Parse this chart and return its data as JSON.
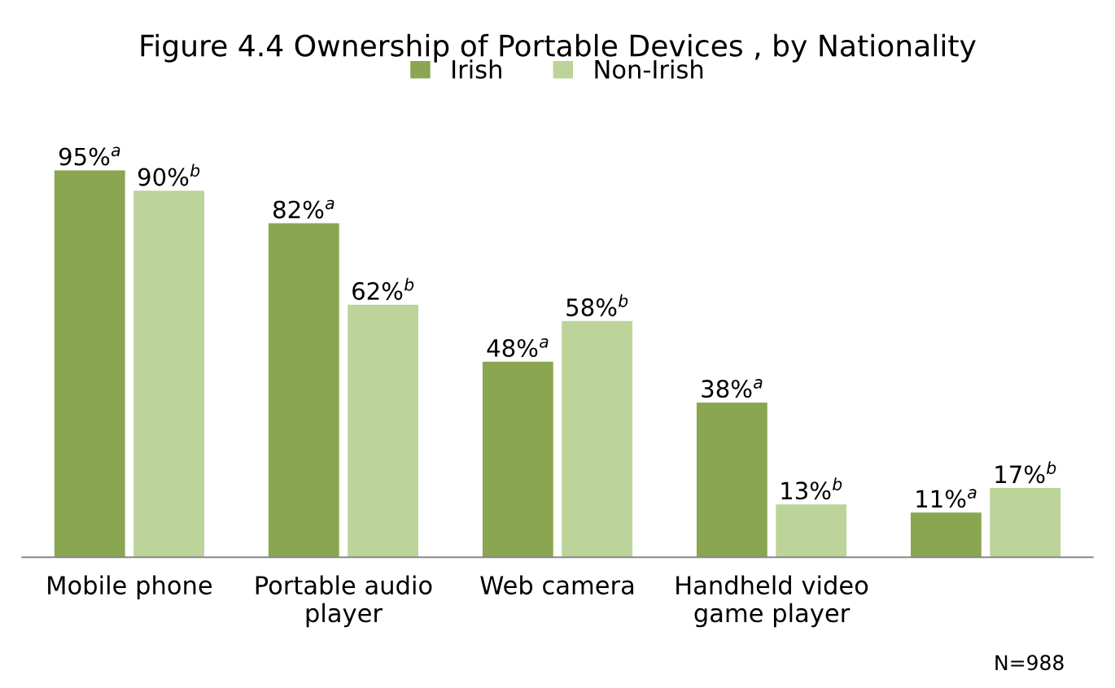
{
  "chart_data": {
    "type": "bar",
    "title": "Figure 4.4 Ownership of Portable Devices , by Nationality",
    "categories": [
      "Mobile phone",
      "Portable audio\nplayer",
      "Web camera",
      "Handheld video\ngame player",
      null
    ],
    "series": [
      {
        "name": "Irish",
        "color": "#8aa651",
        "values": [
          95,
          82,
          48,
          38,
          11
        ],
        "value_labels": [
          "95%$^{a}$",
          "82%$^{a}$",
          "48%$^{a}$",
          "38%$^{a}$",
          "11%$^{a}$"
        ]
      },
      {
        "name": "Non-Irish",
        "color": "#bcd39a",
        "values": [
          90,
          62,
          58,
          13,
          17
        ],
        "value_labels": [
          "90%$^{b}$",
          "62%$^{b}$",
          "58%$^{b}$",
          "13%$^{b}$",
          "17%$^{b}$"
        ]
      }
    ],
    "legend": "top",
    "grid": false,
    "annotations": [
      "N=988"
    ]
  }
}
